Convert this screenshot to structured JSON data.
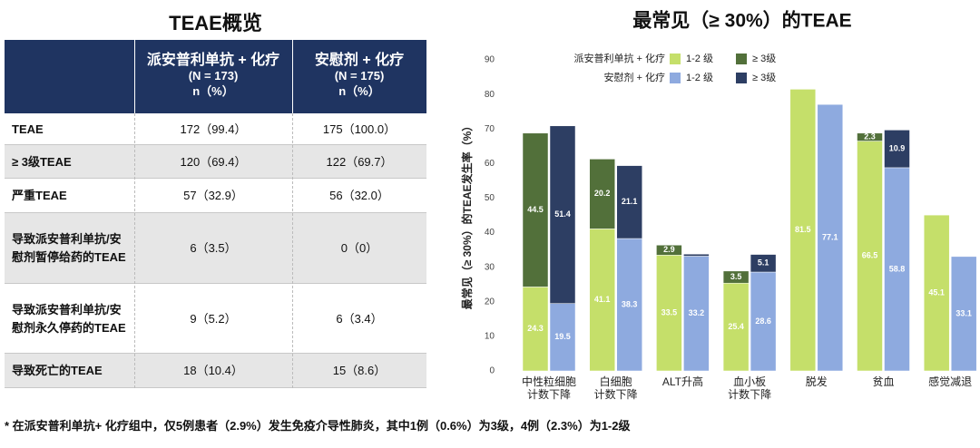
{
  "table": {
    "title": "TEAE概览",
    "header": [
      [
        "派安普利单抗 + 化疗",
        "(N = 173)",
        "n（%）"
      ],
      [
        "安慰剂 + 化疗",
        "(N = 175)",
        "n（%）"
      ]
    ],
    "rows": [
      [
        "TEAE",
        "172（99.4）",
        "175（100.0）"
      ],
      [
        "≥ 3级TEAE",
        "120（69.4）",
        "122（69.7）"
      ],
      [
        "严重TEAE",
        "57（32.9）",
        "56（32.0）"
      ],
      [
        "导致派安普利单抗/安\n慰剂暂停给药的TEAE",
        "6（3.5）",
        "0（0）"
      ],
      [
        "导致派安普利单抗/安\n慰剂永久停药的TEAE",
        "9（5.2）",
        "6（3.4）"
      ],
      [
        "导致死亡的TEAE",
        "18（10.4）",
        "15（8.6）"
      ]
    ]
  },
  "chart_data": {
    "type": "stacked_grouped_bar",
    "title": "最常见（≥ 30%）的TEAE",
    "y_label": "最常见（≥ 30%）的TEAE发生率（%）",
    "categories": [
      "中性粒细胞\n计数下降",
      "白细胞\n计数下降",
      "ALT升高",
      "血小板\n计数下降",
      "脱发",
      "贫血",
      "感觉减退"
    ],
    "ylim": [
      0,
      90
    ],
    "yticks": [
      0,
      10,
      20,
      30,
      40,
      50,
      60,
      70,
      80,
      90
    ],
    "grid": false,
    "groups": [
      {
        "name": "派安普利单抗 + 化疗",
        "series": [
          {
            "name": "1-2 级",
            "color": "#c5df6a",
            "values": [
              24.3,
              41.1,
              33.5,
              25.4,
              81.5,
              66.5,
              45.1
            ]
          },
          {
            "name": "≥ 3级",
            "color": "#52703a",
            "values": [
              44.5,
              20.2,
              2.9,
              3.5,
              null,
              2.3,
              null
            ]
          }
        ]
      },
      {
        "name": "安慰剂 + 化疗",
        "series": [
          {
            "name": "1-2 级",
            "color": "#8eaadf",
            "values": [
              19.5,
              38.3,
              33.2,
              28.6,
              77.1,
              58.8,
              33.1
            ]
          },
          {
            "name": "≥ 3级",
            "color": "#2d3e63",
            "values": [
              51.4,
              21.1,
              0.6,
              5.1,
              null,
              10.9,
              null
            ]
          }
        ]
      }
    ]
  },
  "footnote": "* 在派安普利单抗+ 化疗组中，仅5例患者（2.9%）发生免疫介导性肺炎，其中1例（0.6%）为3级，4例（2.3%）为1-2级"
}
